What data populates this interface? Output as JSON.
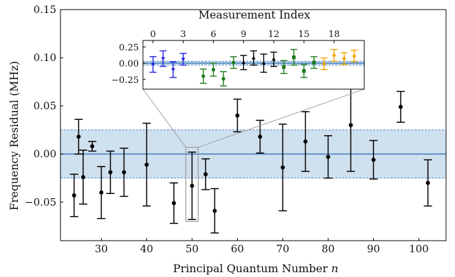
{
  "chart_data": [
    {
      "type": "scatter",
      "xlabel": "Principal Quantum Number",
      "xlabel_var": "n",
      "ylabel": "Frequency Residual (MHz)",
      "xlim": [
        21,
        106
      ],
      "ylim": [
        -0.09,
        0.15
      ],
      "xticks": [
        "30",
        "40",
        "50",
        "60",
        "70",
        "80",
        "90",
        "100"
      ],
      "xtick_values": [
        30,
        40,
        50,
        60,
        70,
        80,
        90,
        100
      ],
      "yticks": [
        "−0.05",
        "0.00",
        "0.05",
        "0.10",
        "0.15"
      ],
      "ytick_values": [
        -0.05,
        0,
        0.05,
        0.1,
        0.15
      ],
      "band": {
        "center": 0.0,
        "lower": -0.025,
        "upper": 0.025,
        "color": "#cfe0ee",
        "line_color": "#3a7ab8"
      },
      "highlight": {
        "n": 50,
        "y_range": [
          -0.07,
          0.007
        ]
      },
      "series": [
        {
          "marker_color": "#000000",
          "points": [
            {
              "x": 24,
              "y": -0.043,
              "err": 0.022
            },
            {
              "x": 25,
              "y": 0.018,
              "err": 0.018
            },
            {
              "x": 26,
              "y": -0.024,
              "err": 0.028
            },
            {
              "x": 28,
              "y": 0.008,
              "err": 0.005
            },
            {
              "x": 30,
              "y": -0.04,
              "err": 0.027
            },
            {
              "x": 32,
              "y": -0.019,
              "err": 0.022
            },
            {
              "x": 35,
              "y": -0.019,
              "err": 0.025
            },
            {
              "x": 40,
              "y": -0.011,
              "err": 0.043
            },
            {
              "x": 46,
              "y": -0.051,
              "err": 0.021
            },
            {
              "x": 50,
              "y": -0.033,
              "err": 0.035
            },
            {
              "x": 53,
              "y": -0.021,
              "err": 0.016
            },
            {
              "x": 55,
              "y": -0.059,
              "err": 0.023
            },
            {
              "x": 60,
              "y": 0.04,
              "err": 0.017
            },
            {
              "x": 65,
              "y": 0.018,
              "err": 0.017
            },
            {
              "x": 70,
              "y": -0.014,
              "err": 0.045
            },
            {
              "x": 75,
              "y": 0.013,
              "err": 0.031
            },
            {
              "x": 80,
              "y": -0.003,
              "err": 0.022
            },
            {
              "x": 85,
              "y": 0.03,
              "err": 0.048
            },
            {
              "x": 90,
              "y": -0.006,
              "err": 0.02
            },
            {
              "x": 96,
              "y": 0.049,
              "err": 0.016
            },
            {
              "x": 102,
              "y": -0.03,
              "err": 0.024
            }
          ]
        }
      ]
    },
    {
      "type": "scatter",
      "title": "Measurement Index",
      "xlim": [
        -1,
        21
      ],
      "ylim": [
        -0.4,
        0.35
      ],
      "xticks": [
        "0",
        "3",
        "6",
        "9",
        "12",
        "15",
        "18"
      ],
      "xtick_values": [
        0,
        3,
        6,
        9,
        12,
        15,
        18
      ],
      "yticks": [
        "−0.25",
        "0.00",
        "0.25"
      ],
      "ytick_values": [
        -0.25,
        0,
        0.25
      ],
      "band": {
        "center": 0.0,
        "lower": -0.03,
        "upper": 0.03,
        "color": "#cfe0ee",
        "line_color": "#3a7ab8"
      },
      "series": [
        {
          "color": "#1f1fe0",
          "marker": "triangle-down",
          "points": [
            {
              "x": 0,
              "y": -0.02,
              "err": 0.12
            },
            {
              "x": 1,
              "y": 0.07,
              "err": 0.12
            },
            {
              "x": 2,
              "y": -0.1,
              "err": 0.12
            },
            {
              "x": 3,
              "y": 0.06,
              "err": 0.09
            }
          ]
        },
        {
          "color": "#1a7a1a",
          "marker": "circle",
          "points": [
            {
              "x": 5,
              "y": -0.2,
              "err": 0.11
            },
            {
              "x": 6,
              "y": -0.1,
              "err": 0.1
            },
            {
              "x": 7,
              "y": -0.24,
              "err": 0.11
            },
            {
              "x": 8,
              "y": 0.01,
              "err": 0.09
            }
          ]
        },
        {
          "color": "#000000",
          "marker": "triangle-up",
          "points": [
            {
              "x": 9,
              "y": 0.01,
              "err": 0.11
            },
            {
              "x": 10,
              "y": 0.08,
              "err": 0.11
            },
            {
              "x": 11,
              "y": 0.0,
              "err": 0.14
            },
            {
              "x": 12,
              "y": 0.06,
              "err": 0.11
            }
          ]
        },
        {
          "color": "#1a7a1a",
          "marker": "square",
          "points": [
            {
              "x": 13,
              "y": -0.06,
              "err": 0.1
            },
            {
              "x": 14,
              "y": 0.09,
              "err": 0.12
            },
            {
              "x": 15,
              "y": -0.12,
              "err": 0.1
            },
            {
              "x": 16,
              "y": 0.01,
              "err": 0.09
            }
          ]
        },
        {
          "color": "#f5a300",
          "marker": "diamond",
          "points": [
            {
              "x": 17,
              "y": -0.01,
              "err": 0.09
            },
            {
              "x": 18,
              "y": 0.12,
              "err": 0.09
            },
            {
              "x": 19,
              "y": 0.07,
              "err": 0.09
            },
            {
              "x": 20,
              "y": 0.11,
              "err": 0.09
            }
          ]
        }
      ]
    }
  ]
}
